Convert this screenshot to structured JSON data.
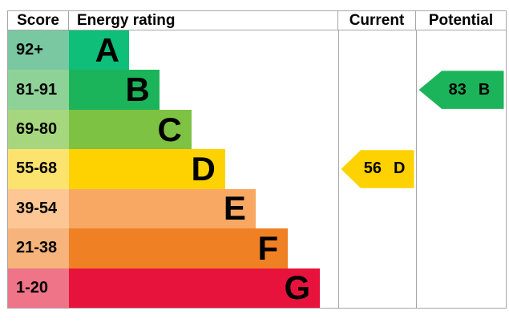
{
  "header": {
    "score": "Score",
    "energy_rating": "Energy rating",
    "current": "Current",
    "potential": "Potential"
  },
  "chart_data": {
    "type": "bar",
    "title": "",
    "columns": [
      "Score",
      "Energy rating",
      "Current",
      "Potential"
    ],
    "categories": [
      "A",
      "B",
      "C",
      "D",
      "E",
      "F",
      "G"
    ],
    "score_ranges": [
      "92+",
      "81-91",
      "69-80",
      "55-68",
      "39-54",
      "21-38",
      "1-20"
    ],
    "bar_length_pct": [
      22.3,
      33.6,
      45.5,
      58.0,
      69.3,
      81.3,
      93.2
    ],
    "band_colors": [
      "#0ebe79",
      "#1cb45a",
      "#7dc242",
      "#fdd200",
      "#f8a862",
      "#ef8124",
      "#e8133d"
    ],
    "score_cell_colors": [
      "#79c8a2",
      "#8ed298",
      "#a6d77e",
      "#fce36e",
      "#fcc795",
      "#f6b37c",
      "#ef7487"
    ],
    "current": {
      "value": "56",
      "band": "D"
    },
    "potential": {
      "value": "83",
      "band": "B"
    },
    "legend_position": "none",
    "grid": false
  },
  "colors": {
    "border": "#a6a6a6",
    "text": "#000000",
    "background": "#ffffff"
  }
}
